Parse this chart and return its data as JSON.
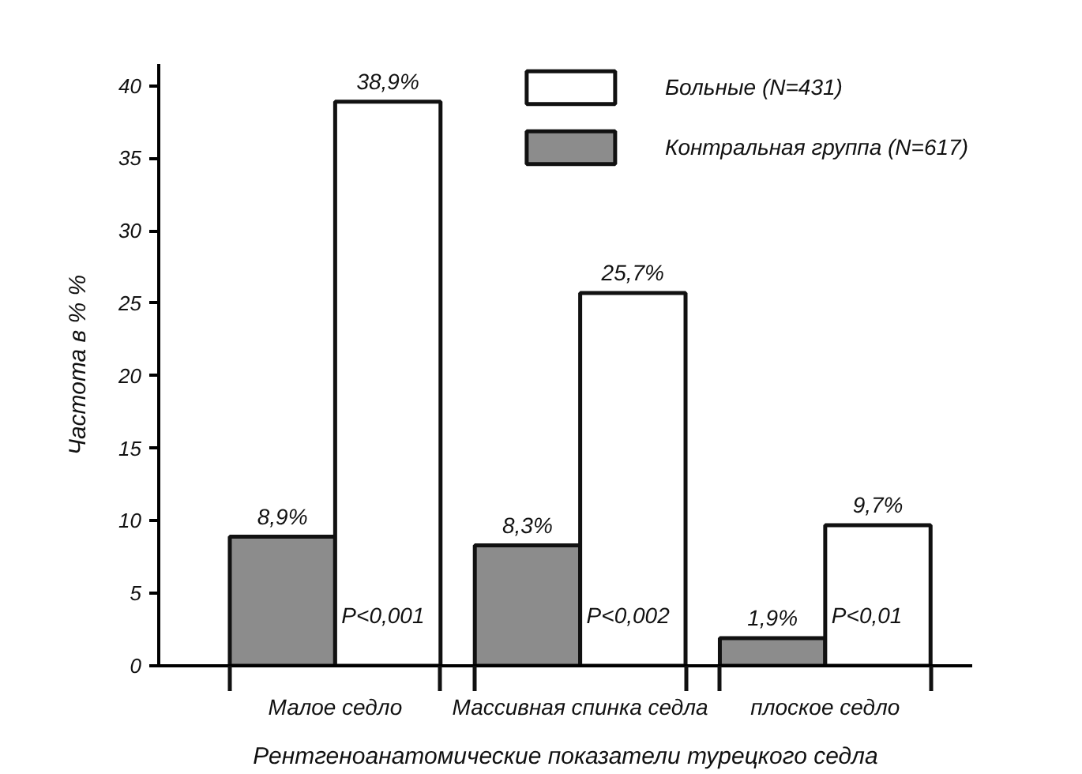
{
  "chart_data": {
    "type": "bar",
    "categories": [
      "Малое седло",
      "Массивная спинка седла",
      "плоское седло"
    ],
    "xlabel": "Рентгеноанатомические показатели турецкого седла",
    "ylabel": "Частота в % %",
    "ylim": [
      0,
      41.5
    ],
    "yticks": [
      0,
      5,
      10,
      15,
      20,
      25,
      30,
      35,
      40
    ],
    "grid": false,
    "legend": "top right",
    "series": [
      {
        "name": "Контральная группа (N=617)",
        "color": "#8c8c8c",
        "values": [
          8.9,
          8.3,
          1.9
        ],
        "value_labels": [
          "8,9%",
          "8,3%",
          "1,9%"
        ]
      },
      {
        "name": "Больные (N=431)",
        "color": "#ffffff",
        "values": [
          38.9,
          25.7,
          9.7
        ],
        "value_labels": [
          "38,9%",
          "25,7%",
          "9,7%"
        ]
      }
    ],
    "annotations": [
      {
        "text": "P<0,001",
        "x": "Малое седло",
        "y": 3.5
      },
      {
        "text": "P<0,002",
        "x": "Массивная спинка седла",
        "y": 3.5
      },
      {
        "text": "P<0,01",
        "x": "плоское седло",
        "y": 3.5
      }
    ]
  }
}
